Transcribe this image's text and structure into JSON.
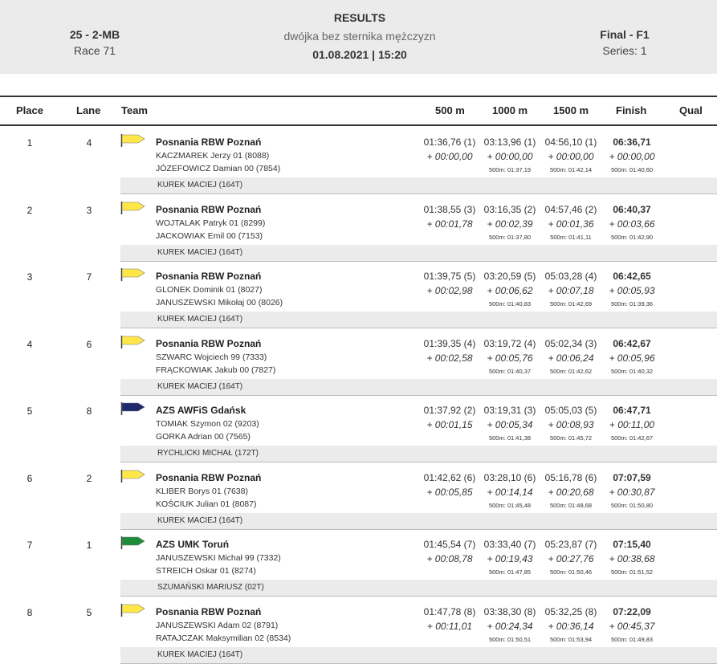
{
  "header": {
    "event_code": "25 - 2-MB",
    "race": "Race 71",
    "title": "RESULTS",
    "subtitle": "dwójka bez sternika mężczyzn",
    "datetime": "01.08.2021 | 15:20",
    "phase": "Final - F1",
    "series": "Series: 1"
  },
  "columns": {
    "place": "Place",
    "lane": "Lane",
    "team": "Team",
    "s500": "500 m",
    "s1000": "1000 m",
    "s1500": "1500 m",
    "finish": "Finish",
    "qual": "Qual"
  },
  "colors": {
    "header_bg": "#ebebeb",
    "coach_bg": "#ebebeb",
    "flag_posnania": "#ffe74a",
    "flag_azs_gdansk": "#1f2a6b",
    "flag_azs_torun": "#1e8c3a"
  },
  "results": [
    {
      "place": "1",
      "lane": "4",
      "flag": "flag_posnania",
      "club": "Posnania RBW Poznań",
      "crew1": "KACZMAREK  Jerzy 01 (8088)",
      "crew2": "JÓZEFOWICZ  Damian 00 (7854)",
      "coach": "KUREK MACIEJ (164T)",
      "s500": "01:36,76 (1)",
      "s500_diff": "+ 00:00,00",
      "s1000": "03:13,96 (1)",
      "s1000_diff": "+ 00:00,00",
      "s1000_int": "500m: 01:37,19",
      "s1500": "04:56,10 (1)",
      "s1500_diff": "+ 00:00,00",
      "s1500_int": "500m: 01:42,14",
      "finish": "06:36,71",
      "finish_diff": "+ 00:00,00",
      "finish_int": "500m: 01:40,60",
      "qual": ""
    },
    {
      "place": "2",
      "lane": "3",
      "flag": "flag_posnania",
      "club": "Posnania RBW Poznań",
      "crew1": "WOJTALAK  Patryk 01 (8299)",
      "crew2": "JACKOWIAK  Emil 00 (7153)",
      "coach": "KUREK MACIEJ (164T)",
      "s500": "01:38,55 (3)",
      "s500_diff": "+ 00:01,78",
      "s1000": "03:16,35 (2)",
      "s1000_diff": "+ 00:02,39",
      "s1000_int": "500m: 01:37,80",
      "s1500": "04:57,46 (2)",
      "s1500_diff": "+ 00:01,36",
      "s1500_int": "500m: 01:41,11",
      "finish": "06:40,37",
      "finish_diff": "+ 00:03,66",
      "finish_int": "500m: 01:42,90",
      "qual": ""
    },
    {
      "place": "3",
      "lane": "7",
      "flag": "flag_posnania",
      "club": "Posnania RBW Poznań",
      "crew1": "GLONEK  Dominik 01 (8027)",
      "crew2": "JANUSZEWSKI  Mikołaj 00 (8026)",
      "coach": "KUREK MACIEJ (164T)",
      "s500": "01:39,75 (5)",
      "s500_diff": "+ 00:02,98",
      "s1000": "03:20,59 (5)",
      "s1000_diff": "+ 00:06,62",
      "s1000_int": "500m: 01:40,83",
      "s1500": "05:03,28 (4)",
      "s1500_diff": "+ 00:07,18",
      "s1500_int": "500m: 01:42,69",
      "finish": "06:42,65",
      "finish_diff": "+ 00:05,93",
      "finish_int": "500m: 01:39,36",
      "qual": ""
    },
    {
      "place": "4",
      "lane": "6",
      "flag": "flag_posnania",
      "club": "Posnania RBW Poznań",
      "crew1": "SZWARC  Wojciech 99 (7333)",
      "crew2": "FRĄCKOWIAK  Jakub 00 (7827)",
      "coach": "KUREK MACIEJ (164T)",
      "s500": "01:39,35 (4)",
      "s500_diff": "+ 00:02,58",
      "s1000": "03:19,72 (4)",
      "s1000_diff": "+ 00:05,76",
      "s1000_int": "500m: 01:40,37",
      "s1500": "05:02,34 (3)",
      "s1500_diff": "+ 00:06,24",
      "s1500_int": "500m: 01:42,62",
      "finish": "06:42,67",
      "finish_diff": "+ 00:05,96",
      "finish_int": "500m: 01:40,32",
      "qual": ""
    },
    {
      "place": "5",
      "lane": "8",
      "flag": "flag_azs_gdansk",
      "club": "AZS AWFiS Gdańsk",
      "crew1": "TOMIAK  Szymon 02 (9203)",
      "crew2": "GORKA  Adrian 00 (7565)",
      "coach": "RYCHLICKI MICHAŁ (172T)",
      "s500": "01:37,92 (2)",
      "s500_diff": "+ 00:01,15",
      "s1000": "03:19,31 (3)",
      "s1000_diff": "+ 00:05,34",
      "s1000_int": "500m: 01:41,38",
      "s1500": "05:05,03 (5)",
      "s1500_diff": "+ 00:08,93",
      "s1500_int": "500m: 01:45,72",
      "finish": "06:47,71",
      "finish_diff": "+ 00:11,00",
      "finish_int": "500m: 01:42,67",
      "qual": ""
    },
    {
      "place": "6",
      "lane": "2",
      "flag": "flag_posnania",
      "club": "Posnania RBW Poznań",
      "crew1": "KLIBER  Borys 01 (7638)",
      "crew2": "KOŚCIUK  Julian 01 (8087)",
      "coach": "KUREK MACIEJ (164T)",
      "s500": "01:42,62 (6)",
      "s500_diff": "+ 00:05,85",
      "s1000": "03:28,10 (6)",
      "s1000_diff": "+ 00:14,14",
      "s1000_int": "500m: 01:45,48",
      "s1500": "05:16,78 (6)",
      "s1500_diff": "+ 00:20,68",
      "s1500_int": "500m: 01:48,68",
      "finish": "07:07,59",
      "finish_diff": "+ 00:30,87",
      "finish_int": "500m: 01:50,80",
      "qual": ""
    },
    {
      "place": "7",
      "lane": "1",
      "flag": "flag_azs_torun",
      "club": "AZS UMK Toruń",
      "crew1": "JANUSZEWSKI  Michał 99 (7332)",
      "crew2": "STREICH  Oskar 01 (8274)",
      "coach": "SZUMAŃSKI MARIUSZ (02T)",
      "s500": "01:45,54 (7)",
      "s500_diff": "+ 00:08,78",
      "s1000": "03:33,40 (7)",
      "s1000_diff": "+ 00:19,43",
      "s1000_int": "500m: 01:47,85",
      "s1500": "05:23,87 (7)",
      "s1500_diff": "+ 00:27,76",
      "s1500_int": "500m: 01:50,46",
      "finish": "07:15,40",
      "finish_diff": "+ 00:38,68",
      "finish_int": "500m: 01:51,52",
      "qual": ""
    },
    {
      "place": "8",
      "lane": "5",
      "flag": "flag_posnania",
      "club": "Posnania RBW Poznań",
      "crew1": "JANUSZEWSKI  Adam 02 (8791)",
      "crew2": "RATAJCZAK  Maksymilian 02 (8534)",
      "coach": "KUREK MACIEJ (164T)",
      "s500": "01:47,78 (8)",
      "s500_diff": "+ 00:11,01",
      "s1000": "03:38,30 (8)",
      "s1000_diff": "+ 00:24,34",
      "s1000_int": "500m: 01:50,51",
      "s1500": "05:32,25 (8)",
      "s1500_diff": "+ 00:36,14",
      "s1500_int": "500m: 01:53,94",
      "finish": "07:22,09",
      "finish_diff": "+ 00:45,37",
      "finish_int": "500m: 01:49,83",
      "qual": ""
    }
  ]
}
